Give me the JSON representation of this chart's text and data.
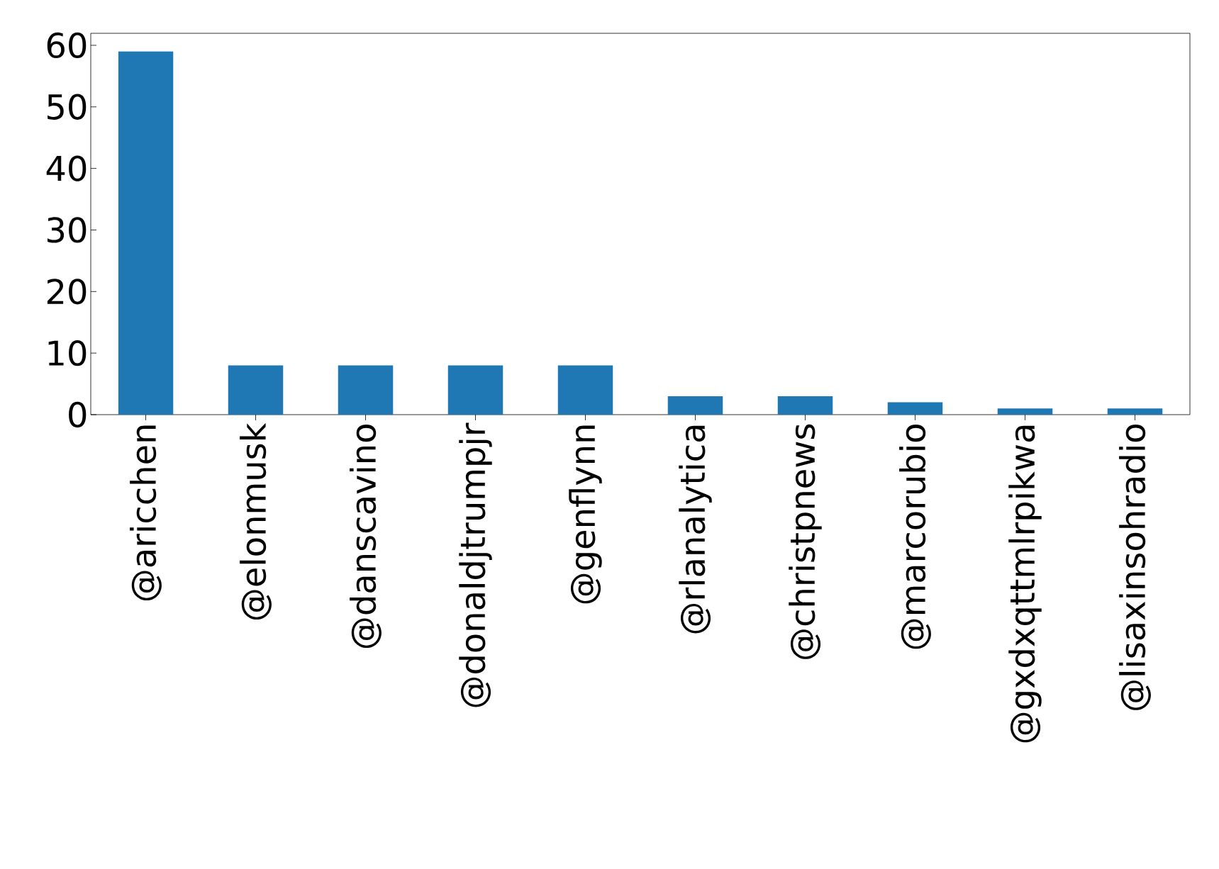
{
  "chart_data": {
    "type": "bar",
    "categories": [
      "@aricchen",
      "@elonmusk",
      "@danscavino",
      "@donaldjtrumpjr",
      "@genflynn",
      "@rlanalytica",
      "@christpnews",
      "@marcorubio",
      "@gxdxqttmlrpikwa",
      "@lisaxinsohradio"
    ],
    "values": [
      59,
      8,
      8,
      8,
      8,
      3,
      3,
      2,
      1,
      1
    ],
    "color": "#1f77b4",
    "ylim": [
      0,
      61.95
    ],
    "yticks": [
      0,
      10,
      20,
      30,
      40,
      50,
      60
    ]
  }
}
